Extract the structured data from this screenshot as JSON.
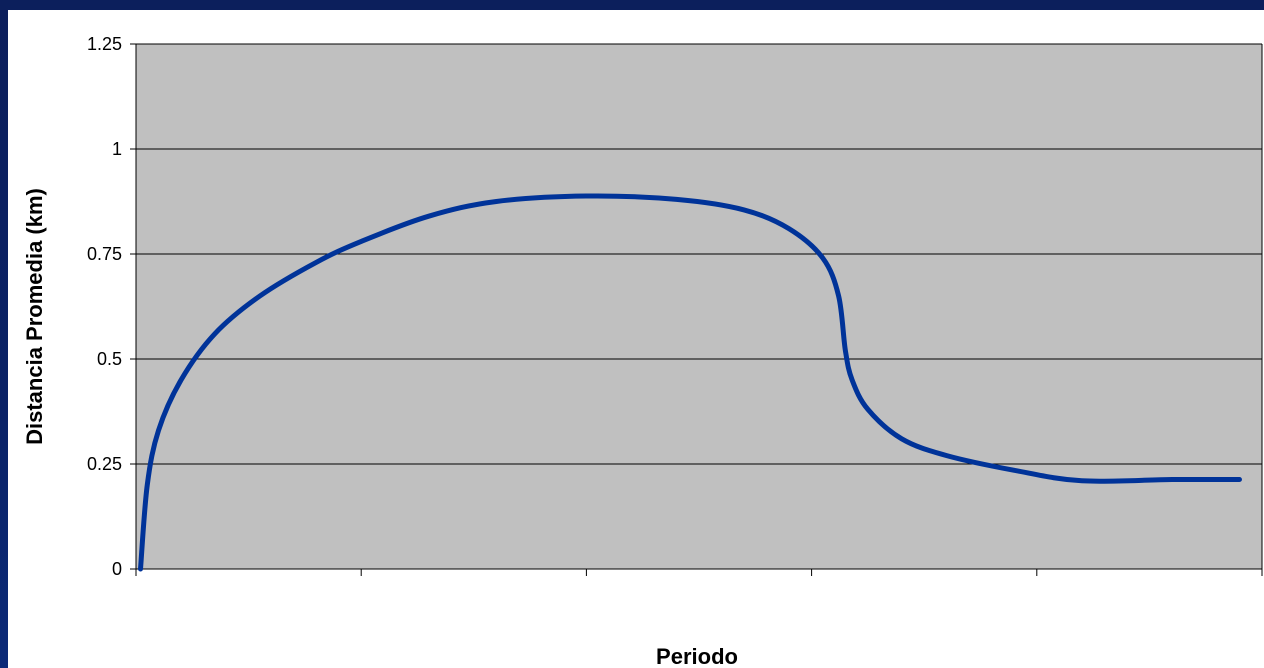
{
  "chart_data": {
    "type": "line",
    "title": "",
    "xlabel": "Periodo",
    "ylabel": "Distancia Promedia (km)",
    "ylim": [
      0,
      1.25
    ],
    "xlim": [
      0,
      5
    ],
    "yticks": [
      "0",
      "0.25",
      "0.5",
      "0.75",
      "1",
      "1.25"
    ],
    "xticks_count": 5,
    "grid": "horizontal",
    "legend": "none",
    "colors": {
      "plot_area": "#c0c0c0",
      "line": "#003399",
      "gridline": "#000000",
      "slide_background": "#0a2266"
    },
    "series": [
      {
        "values": [
          [
            0.02,
            0.0
          ],
          [
            0.05,
            0.2
          ],
          [
            0.1,
            0.33
          ],
          [
            0.2,
            0.45
          ],
          [
            0.35,
            0.56
          ],
          [
            0.55,
            0.65
          ],
          [
            0.8,
            0.73
          ],
          [
            1.0,
            0.78
          ],
          [
            1.3,
            0.84
          ],
          [
            1.6,
            0.875
          ],
          [
            2.0,
            0.888
          ],
          [
            2.4,
            0.88
          ],
          [
            2.7,
            0.855
          ],
          [
            2.9,
            0.81
          ],
          [
            3.05,
            0.74
          ],
          [
            3.12,
            0.65
          ],
          [
            3.15,
            0.52
          ],
          [
            3.18,
            0.45
          ],
          [
            3.25,
            0.38
          ],
          [
            3.4,
            0.31
          ],
          [
            3.6,
            0.27
          ],
          [
            3.9,
            0.235
          ],
          [
            4.2,
            0.21
          ],
          [
            4.6,
            0.213
          ],
          [
            4.9,
            0.213
          ]
        ]
      }
    ]
  }
}
